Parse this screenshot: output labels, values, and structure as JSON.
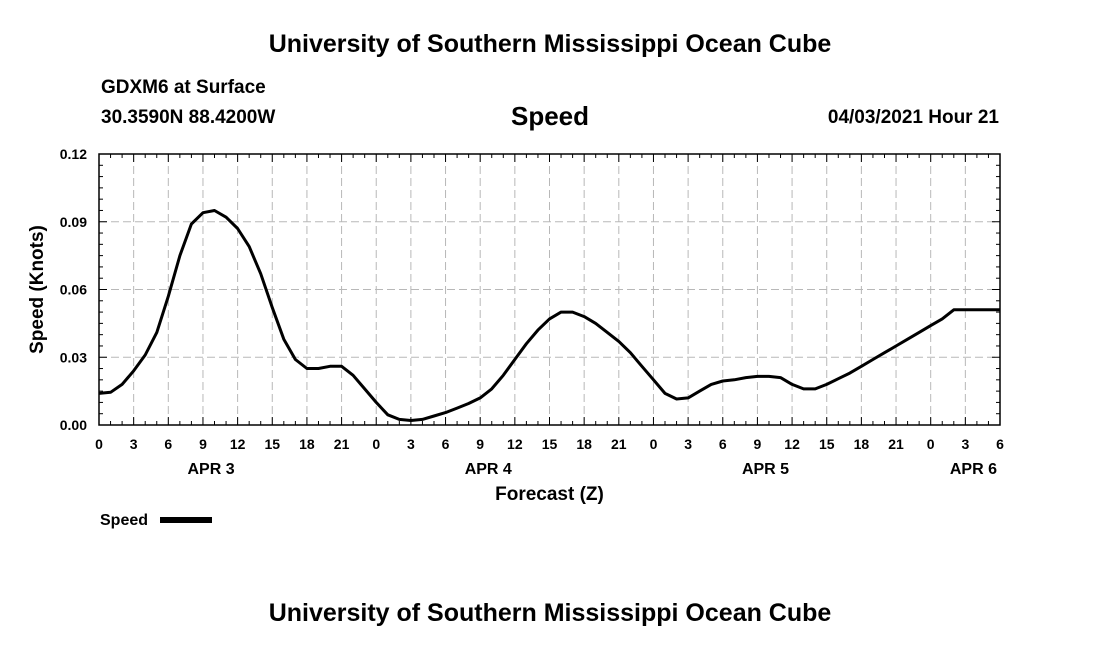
{
  "header": {
    "title": "University of Southern Mississippi Ocean Cube",
    "station": "GDXM6 at Surface",
    "coordinates": "30.3590N  88.4200W",
    "chart_title": "Speed",
    "date": "04/03/2021 Hour 21"
  },
  "footer": {
    "title": "University of Southern Mississippi Ocean Cube"
  },
  "chart_data": {
    "type": "line",
    "title": "Speed",
    "xlabel": "Forecast (Z)",
    "ylabel": "Speed (Knots)",
    "xlim": [
      0,
      78
    ],
    "ylim": [
      0,
      0.12
    ],
    "grid": true,
    "x_tick_values": [
      0,
      3,
      6,
      9,
      12,
      15,
      18,
      21,
      24,
      27,
      30,
      33,
      36,
      39,
      42,
      45,
      48,
      51,
      54,
      57,
      60,
      63,
      66,
      69,
      72,
      75,
      78
    ],
    "x_tick_labels": [
      "0",
      "3",
      "6",
      "9",
      "12",
      "15",
      "18",
      "21",
      "0",
      "3",
      "6",
      "9",
      "12",
      "15",
      "18",
      "21",
      "0",
      "3",
      "6",
      "9",
      "12",
      "15",
      "18",
      "21",
      "0",
      "3",
      "6"
    ],
    "y_tick_values": [
      0,
      0.03,
      0.06,
      0.09,
      0.12
    ],
    "y_tick_labels": [
      "0.00",
      "0.03",
      "0.06",
      "0.09",
      "0.12"
    ],
    "day_labels": [
      {
        "label": "APR 3",
        "x": 9.7
      },
      {
        "label": "APR 4",
        "x": 33.7
      },
      {
        "label": "APR 5",
        "x": 57.7
      },
      {
        "label": "APR 6",
        "x": 75.7
      }
    ],
    "legend": {
      "label": "Speed",
      "position": "bottom-left"
    },
    "series": [
      {
        "name": "Speed",
        "x": [
          0,
          1,
          2,
          3,
          4,
          5,
          6,
          7,
          8,
          9,
          10,
          11,
          12,
          13,
          14,
          15,
          16,
          17,
          18,
          19,
          20,
          21,
          22,
          23,
          24,
          25,
          26,
          27,
          28,
          29,
          30,
          31,
          32,
          33,
          34,
          35,
          36,
          37,
          38,
          39,
          40,
          41,
          42,
          43,
          44,
          45,
          46,
          47,
          48,
          49,
          50,
          51,
          52,
          53,
          54,
          55,
          56,
          57,
          58,
          59,
          60,
          61,
          62,
          63,
          64,
          65,
          66,
          67,
          68,
          69,
          70,
          71,
          72,
          73,
          74,
          75,
          76,
          77,
          78
        ],
        "values": [
          0.014,
          0.0145,
          0.018,
          0.024,
          0.031,
          0.041,
          0.057,
          0.075,
          0.089,
          0.094,
          0.095,
          0.092,
          0.087,
          0.079,
          0.067,
          0.052,
          0.038,
          0.029,
          0.025,
          0.025,
          0.026,
          0.026,
          0.022,
          0.016,
          0.01,
          0.0045,
          0.0025,
          0.002,
          0.0025,
          0.004,
          0.0055,
          0.0075,
          0.0095,
          0.012,
          0.016,
          0.022,
          0.029,
          0.036,
          0.042,
          0.047,
          0.05,
          0.05,
          0.048,
          0.045,
          0.041,
          0.037,
          0.032,
          0.026,
          0.02,
          0.014,
          0.0115,
          0.012,
          0.015,
          0.018,
          0.0195,
          0.02,
          0.021,
          0.0215,
          0.0215,
          0.021,
          0.018,
          0.016,
          0.016,
          0.018,
          0.0205,
          0.023,
          0.026,
          0.029,
          0.032,
          0.035,
          0.038,
          0.041,
          0.044,
          0.047,
          0.051,
          0.051,
          0.051,
          0.051,
          0.051
        ]
      }
    ]
  }
}
